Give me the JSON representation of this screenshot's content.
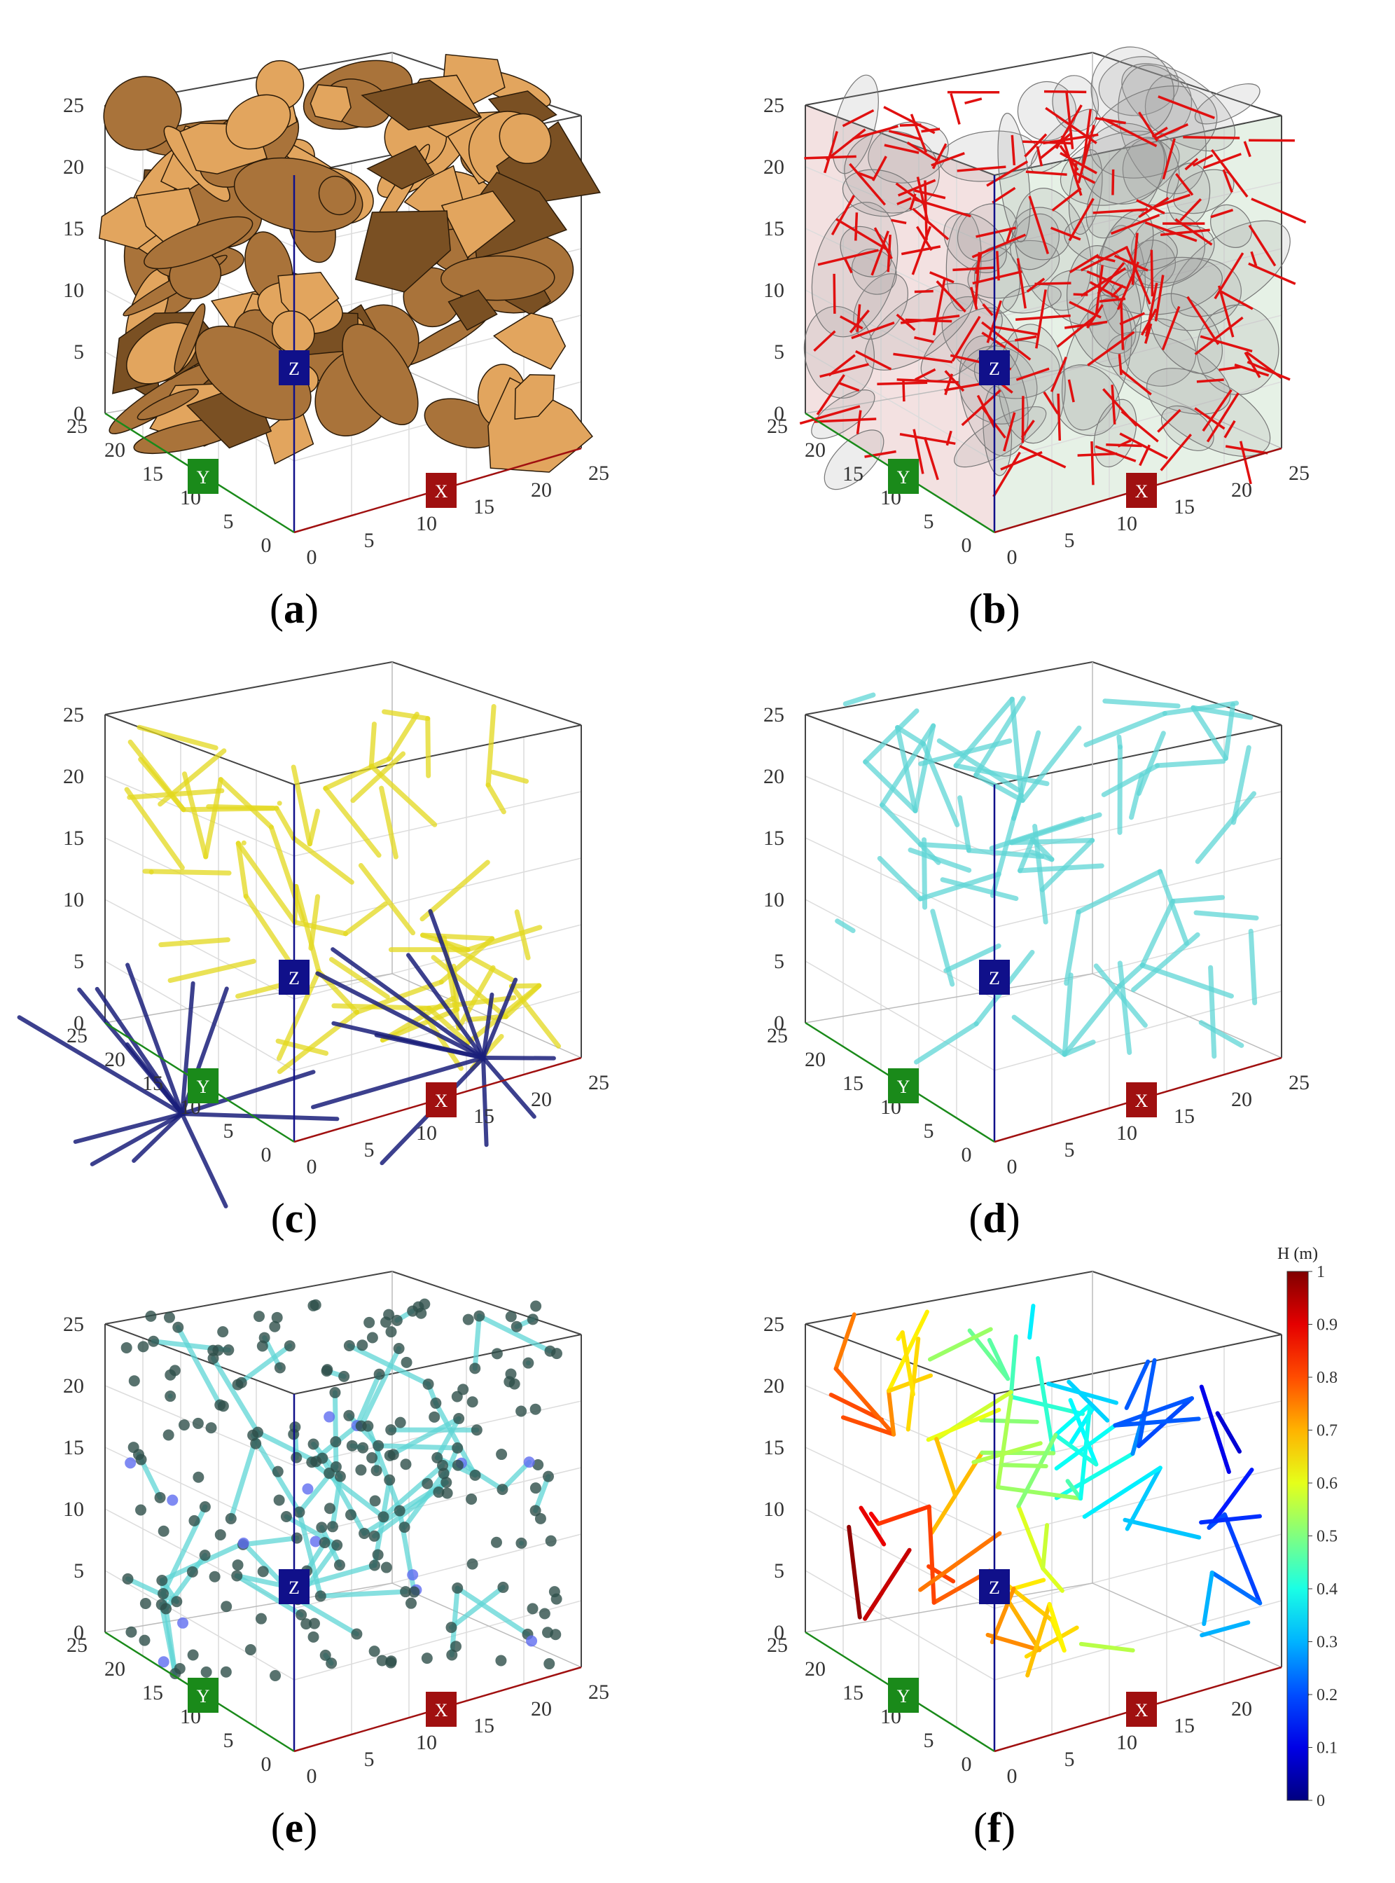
{
  "panels": [
    {
      "label": "a",
      "style": "discs"
    },
    {
      "label": "b",
      "style": "traces"
    },
    {
      "label": "c",
      "style": "pipes-yellow"
    },
    {
      "label": "d",
      "style": "pipes-cyan"
    },
    {
      "label": "e",
      "style": "pipes-nodes"
    },
    {
      "label": "f",
      "style": "pipes-head"
    }
  ],
  "axes": {
    "z_ticks": [
      "0",
      "5",
      "10",
      "15",
      "20",
      "25"
    ],
    "y_ticks": [
      "0",
      "5",
      "10",
      "15",
      "20",
      "25"
    ],
    "x_ticks": [
      "0",
      "5",
      "10",
      "15",
      "20",
      "25"
    ],
    "x_tag": "X",
    "y_tag": "Y",
    "z_tag": "Z"
  },
  "colorbar": {
    "title": "H (m)",
    "ticks": [
      "0",
      "0.1",
      "0.2",
      "0.3",
      "0.4",
      "0.5",
      "0.6",
      "0.7",
      "0.8",
      "0.9",
      "1"
    ]
  },
  "colors": {
    "disc_fill": "#a9733a",
    "disc_light": "#e2a55e",
    "trace": "#e01010",
    "pipe_yellow": "#e3d81e",
    "pipe_blue": "#1a1f7a",
    "pipe_cyan": "#5fd6d6",
    "node": "#2e4f4a",
    "node_blue": "#5f6df0",
    "x_axis": "#a01010",
    "y_axis": "#1a8a1a",
    "z_axis": "#10108a"
  }
}
